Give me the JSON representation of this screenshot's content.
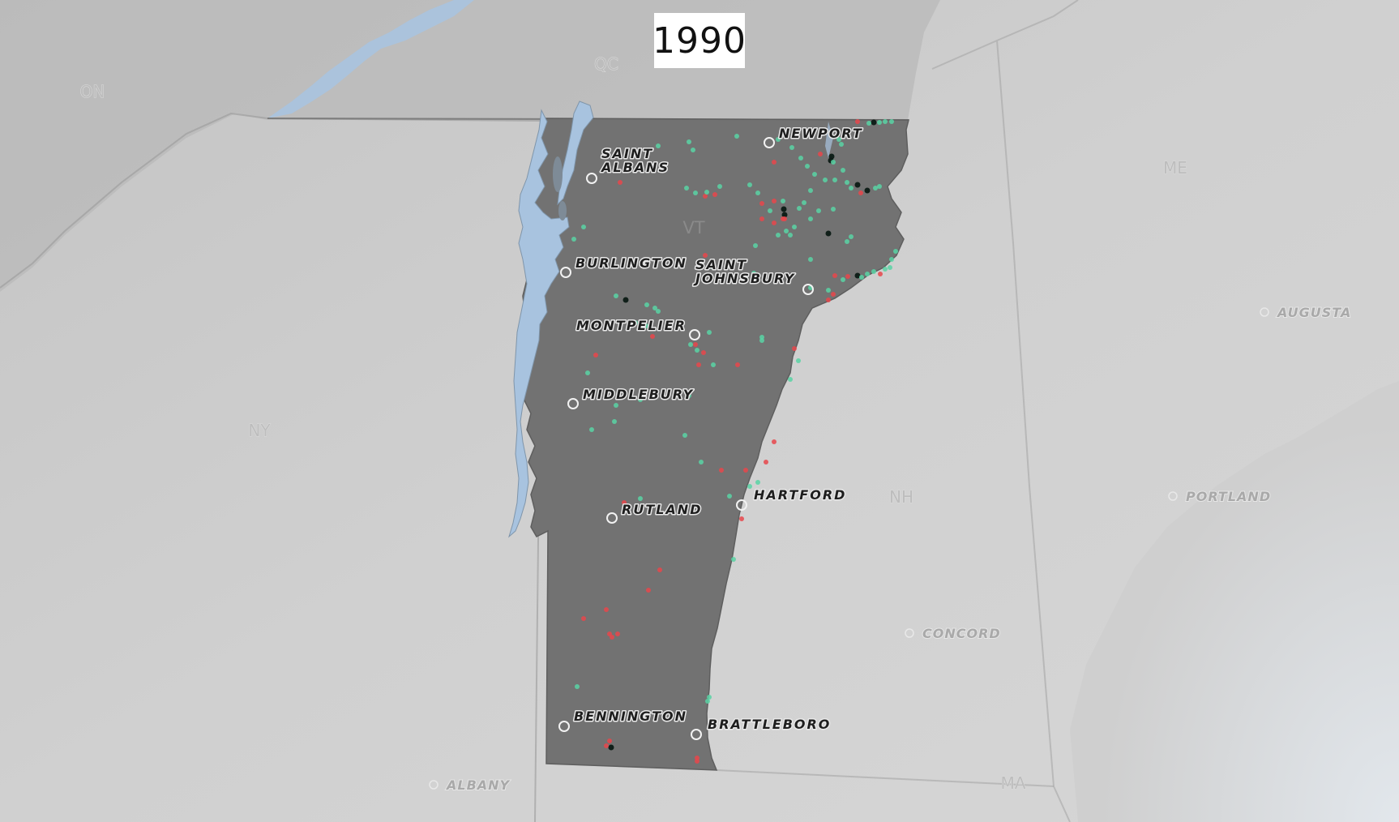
{
  "year": "1990",
  "region_labels": [
    {
      "key": "on",
      "text": "ON"
    },
    {
      "key": "qc",
      "text": "QC"
    },
    {
      "key": "me",
      "text": "ME"
    },
    {
      "key": "ny",
      "text": "NY"
    },
    {
      "key": "nh",
      "text": "NH"
    },
    {
      "key": "ma",
      "text": "MA"
    },
    {
      "key": "vt",
      "text": "VT"
    }
  ],
  "vt_cities": [
    {
      "key": "saint-albans",
      "lines": [
        "SAINT",
        "ALBANS"
      ]
    },
    {
      "key": "newport",
      "lines": [
        "NEWPORT"
      ]
    },
    {
      "key": "burlington",
      "lines": [
        "BURLINGTON"
      ]
    },
    {
      "key": "saint-johnsbury",
      "lines": [
        "SAINT",
        "JOHNSBURY"
      ]
    },
    {
      "key": "montpelier",
      "lines": [
        "MONTPELIER"
      ]
    },
    {
      "key": "middlebury",
      "lines": [
        "MIDDLEBURY"
      ]
    },
    {
      "key": "hartford",
      "lines": [
        "HARTFORD"
      ]
    },
    {
      "key": "rutland",
      "lines": [
        "RUTLAND"
      ]
    },
    {
      "key": "bennington",
      "lines": [
        "BENNINGTON"
      ]
    },
    {
      "key": "brattleboro",
      "lines": [
        "BRATTLEBORO"
      ]
    }
  ],
  "outer_cities": [
    {
      "key": "augusta",
      "text": "AUGUSTA"
    },
    {
      "key": "portland",
      "text": "PORTLAND"
    },
    {
      "key": "concord",
      "text": "CONCORD"
    },
    {
      "key": "albany",
      "text": "ALBANY"
    }
  ],
  "colors": {
    "background": "#cfcfcf",
    "state_fill": "#727272",
    "water": "#a8c3df",
    "dot_green": "#59d4a4",
    "dot_red": "#e8474b",
    "dot_black": "#0b1a14",
    "ocean": "#dde3e8"
  }
}
